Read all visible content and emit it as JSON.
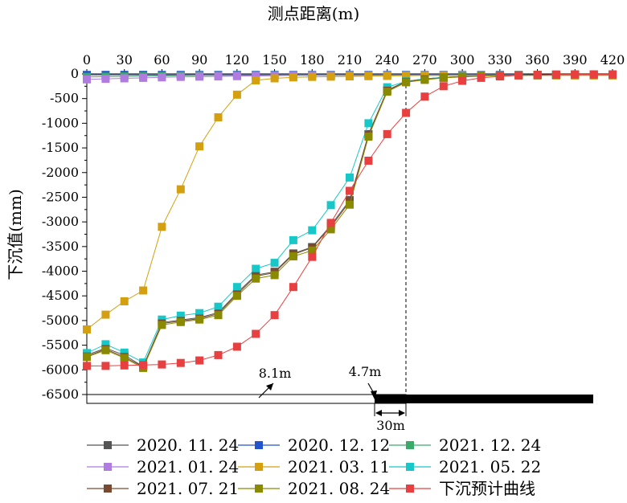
{
  "chart_data": {
    "type": "line",
    "title": "测点距离(m)",
    "xlabel": "测点距离(m)",
    "ylabel": "下沉值(mm)",
    "xlim": [
      0,
      420
    ],
    "ylim": [
      -6500,
      0
    ],
    "x_ticks": [
      "0",
      "30",
      "60",
      "90",
      "120",
      "150",
      "180",
      "210",
      "240",
      "270",
      "300",
      "330",
      "360",
      "390",
      "420"
    ],
    "y_ticks": [
      "0",
      "-500",
      "-1000",
      "-1500",
      "-2000",
      "-2500",
      "-3000",
      "-3500",
      "-4000",
      "-4500",
      "-5000",
      "-5500",
      "-6000",
      "-6500"
    ],
    "x_axis_position": "top",
    "grid": false,
    "legend": "bottom",
    "annotations": {
      "d1": "8.1m",
      "d2": "4.7m",
      "d3": "30m"
    },
    "series": [
      {
        "name": "2020. 11. 24",
        "color": "#555555",
        "marker": "square",
        "x": [
          0,
          15,
          30,
          45,
          60,
          75,
          90,
          105,
          120,
          135,
          150,
          165,
          180,
          195,
          210,
          225,
          240,
          255,
          270,
          285,
          300,
          315,
          330,
          345,
          360,
          375,
          390,
          405,
          420
        ],
        "y": [
          -5700,
          -5560,
          -5700,
          -5930,
          -5040,
          -4990,
          -4940,
          -4840,
          -4440,
          -4080,
          -4010,
          -3640,
          -3510,
          -3070,
          -2560,
          -1220,
          -330,
          -150,
          -100,
          -70,
          -50,
          -40,
          -30,
          -25,
          -20,
          -15,
          -10,
          -10,
          -10
        ]
      },
      {
        "name": "2020. 12. 12",
        "color": "#2255cc",
        "marker": "square",
        "x": [
          0,
          15,
          30,
          45,
          60,
          75,
          90,
          105,
          120,
          135,
          150,
          165,
          180,
          195,
          210,
          225,
          240,
          255,
          270,
          285,
          300,
          315,
          330,
          345,
          360,
          375,
          390,
          405,
          420
        ],
        "y": [
          -20,
          -20,
          -20,
          -20,
          -20,
          -20,
          -20,
          -20,
          -20,
          -20,
          -20,
          -20,
          -20,
          -20,
          -20,
          -20,
          -20,
          -20,
          -20,
          -20,
          -20,
          -20,
          -20,
          -20,
          -20,
          -20,
          -20,
          -20,
          -20
        ]
      },
      {
        "name": "2021. 12. 24",
        "color": "#3aaa6a",
        "marker": "square",
        "x": [
          0,
          15,
          30,
          45,
          60,
          75,
          90,
          105,
          120,
          135,
          150,
          165,
          180,
          195,
          210,
          225,
          240,
          255,
          270,
          285,
          300,
          315,
          330,
          345,
          360,
          375,
          390,
          405,
          420
        ],
        "y": [
          -60,
          -55,
          -50,
          -45,
          -40,
          -35,
          -30,
          -30,
          -30,
          -30,
          -30,
          -30,
          -30,
          -30,
          -30,
          -30,
          -30,
          -30,
          -30,
          -30,
          -30,
          -30,
          -30,
          -30,
          -30,
          -30,
          -30,
          -30,
          -30
        ]
      },
      {
        "name": "2021. 01. 24",
        "color": "#b07ce0",
        "marker": "square",
        "x": [
          0,
          15,
          30,
          45,
          60,
          75,
          90,
          105,
          120,
          135,
          150,
          165,
          180,
          195,
          210,
          225,
          240,
          255,
          270,
          285,
          300,
          315,
          330,
          345,
          360,
          375,
          390,
          405,
          420
        ],
        "y": [
          -110,
          -100,
          -90,
          -80,
          -70,
          -60,
          -55,
          -50,
          -45,
          -40,
          -35,
          -30,
          -30,
          -30,
          -30,
          -30,
          -30,
          -30,
          -30,
          -30,
          -30,
          -30,
          -30,
          -30,
          -30,
          -30,
          -30,
          -30,
          -30
        ]
      },
      {
        "name": "2021. 03. 11",
        "color": "#d4a010",
        "marker": "square",
        "x": [
          0,
          15,
          30,
          45,
          60,
          75,
          90,
          105,
          120,
          135,
          150,
          165,
          180,
          195,
          210,
          225,
          240,
          255,
          270,
          285,
          300,
          315,
          330,
          345,
          360,
          375,
          390,
          405,
          420
        ],
        "y": [
          -5180,
          -4880,
          -4610,
          -4390,
          -3100,
          -2340,
          -1470,
          -880,
          -420,
          -130,
          -90,
          -70,
          -60,
          -55,
          -50,
          -45,
          -40,
          -35,
          -30,
          -30,
          -30,
          -30,
          -30,
          -30,
          -30,
          -30,
          -30,
          -30,
          -30
        ]
      },
      {
        "name": "2021. 05. 22",
        "color": "#18c8c8",
        "marker": "square",
        "x": [
          0,
          15,
          30,
          45,
          60,
          75,
          90,
          105,
          120,
          135,
          150,
          165,
          180,
          195,
          210,
          225,
          240,
          255,
          270,
          285,
          300,
          315,
          330,
          345,
          360,
          375,
          390,
          405,
          420
        ],
        "y": [
          -5660,
          -5480,
          -5650,
          -5850,
          -4980,
          -4900,
          -4850,
          -4720,
          -4320,
          -3950,
          -3830,
          -3370,
          -3170,
          -2660,
          -2100,
          -1000,
          -270,
          -150,
          -100,
          -70,
          -50,
          -40,
          -30,
          -25,
          -20,
          -15,
          -10,
          -10,
          -10
        ]
      },
      {
        "name": "2021. 07. 21",
        "color": "#7a4a30",
        "marker": "square",
        "x": [
          0,
          15,
          30,
          45,
          60,
          75,
          90,
          105,
          120,
          135,
          150,
          165,
          180,
          195,
          210,
          225,
          240,
          255,
          270,
          285,
          300,
          315,
          330,
          345,
          360,
          375,
          390,
          405,
          420
        ],
        "y": [
          -5730,
          -5580,
          -5740,
          -5940,
          -5060,
          -5010,
          -4960,
          -4860,
          -4470,
          -4100,
          -4030,
          -3660,
          -3520,
          -3100,
          -2590,
          -1240,
          -340,
          -160,
          -110,
          -75,
          -55,
          -40,
          -30,
          -25,
          -20,
          -15,
          -10,
          -10,
          -10
        ]
      },
      {
        "name": "2021. 08. 24",
        "color": "#8a8a00",
        "marker": "square",
        "x": [
          0,
          15,
          30,
          45,
          60,
          75,
          90,
          105,
          120,
          135,
          150,
          165,
          180,
          195,
          210,
          225,
          240,
          255,
          270,
          285,
          300,
          315,
          330,
          345,
          360,
          375,
          390,
          405,
          420
        ],
        "y": [
          -5740,
          -5600,
          -5760,
          -5960,
          -5090,
          -5030,
          -4980,
          -4890,
          -4500,
          -4150,
          -4080,
          -3700,
          -3580,
          -3150,
          -2650,
          -1270,
          -360,
          -170,
          -120,
          -80,
          -60,
          -45,
          -35,
          -25,
          -20,
          -15,
          -10,
          -10,
          -10
        ]
      },
      {
        "name": "下沉预计曲线",
        "color": "#e84040",
        "marker": "square",
        "x": [
          0,
          15,
          30,
          45,
          60,
          75,
          90,
          105,
          120,
          135,
          150,
          165,
          180,
          195,
          210,
          225,
          240,
          255,
          270,
          285,
          300,
          315,
          330,
          345,
          360,
          375,
          390,
          405,
          420
        ],
        "y": [
          -5920,
          -5920,
          -5910,
          -5900,
          -5890,
          -5860,
          -5810,
          -5700,
          -5530,
          -5270,
          -4890,
          -4320,
          -3710,
          -3020,
          -2370,
          -1760,
          -1220,
          -790,
          -460,
          -250,
          -140,
          -80,
          -50,
          -30,
          -20,
          -15,
          -10,
          -10,
          -10
        ]
      }
    ]
  }
}
